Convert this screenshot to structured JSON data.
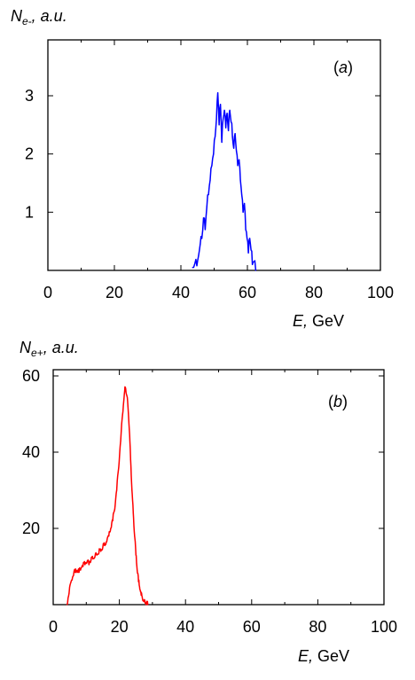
{
  "chart_data": [
    {
      "type": "line",
      "panel_label": "a",
      "ylabel_main": "N",
      "ylabel_sub": "e-",
      "ylabel_rest": ", a.u.",
      "xlabel_var": "E,",
      "xlabel_unit": " GeV",
      "xlim": [
        0,
        100
      ],
      "ylim": [
        0,
        3
      ],
      "xticks": [
        0,
        20,
        40,
        60,
        80,
        100
      ],
      "yticks": [
        1,
        2,
        3
      ],
      "color": "#0000ff",
      "series": [
        {
          "x": [
            43.5,
            44.2,
            44.8,
            45.3,
            45.8,
            46.3,
            46.8,
            47.3,
            47.8,
            48.3,
            48.8,
            49.3,
            49.8,
            50.3,
            50.7,
            51.1,
            51.5,
            51.9,
            52.3,
            52.7,
            53.1,
            53.5,
            53.9,
            54.3,
            54.7,
            55.1,
            55.5,
            55.9,
            56.3,
            56.7,
            57.1,
            57.5,
            57.9,
            58.3,
            58.7,
            59.1,
            59.5,
            59.9,
            60.3,
            60.7,
            61.1,
            61.5,
            62.0,
            62.5
          ],
          "y": [
            0.05,
            0.12,
            0.08,
            0.25,
            0.45,
            0.55,
            0.9,
            0.7,
            1.1,
            1.3,
            1.55,
            1.8,
            2.0,
            2.3,
            2.6,
            3.05,
            2.5,
            2.85,
            2.2,
            2.6,
            2.75,
            2.45,
            2.7,
            2.4,
            2.75,
            2.55,
            2.3,
            2.1,
            2.35,
            2.05,
            1.8,
            1.9,
            1.55,
            1.3,
            1.0,
            1.15,
            0.7,
            0.55,
            0.3,
            0.55,
            0.35,
            0.1,
            0.15,
            0.0
          ]
        }
      ]
    },
    {
      "type": "line",
      "panel_label": "b",
      "ylabel_main": "N",
      "ylabel_sub": "e+",
      "ylabel_rest": ", a.u.",
      "xlabel_var": "E,",
      "xlabel_unit": " GeV",
      "xlim": [
        0,
        100
      ],
      "ylim": [
        0,
        58
      ],
      "xticks": [
        0,
        20,
        40,
        60,
        80,
        100
      ],
      "yticks": [
        20,
        40,
        60
      ],
      "color": "#ff0000",
      "series": [
        {
          "x": [
            4.2,
            4.8,
            5.4,
            6.0,
            6.6,
            7.2,
            7.8,
            8.4,
            9.0,
            9.6,
            10.2,
            10.8,
            11.4,
            12.0,
            12.6,
            13.2,
            13.8,
            14.4,
            15.0,
            15.6,
            16.2,
            16.8,
            17.4,
            18.0,
            18.6,
            19.2,
            19.8,
            20.4,
            21.0,
            21.4,
            21.8,
            22.2,
            22.6,
            23.0,
            23.4,
            23.8,
            24.2,
            24.6,
            25.0,
            25.4,
            25.8,
            26.2,
            26.6,
            27.0,
            27.4,
            27.8,
            28.2,
            28.6
          ],
          "y": [
            0.0,
            3.0,
            6.0,
            7.5,
            8.5,
            9.0,
            8.5,
            9.5,
            10.0,
            10.5,
            11.0,
            10.5,
            11.5,
            12.0,
            12.5,
            13.0,
            13.5,
            14.0,
            15.0,
            15.5,
            16.5,
            18.0,
            20.0,
            22.0,
            25.0,
            30.0,
            36.0,
            43.0,
            50.0,
            54.0,
            57.0,
            55.0,
            52.0,
            46.0,
            38.0,
            30.0,
            24.0,
            18.0,
            13.0,
            9.0,
            6.0,
            4.0,
            2.5,
            1.5,
            0.8,
            0.4,
            0.1,
            0.0
          ]
        }
      ]
    }
  ]
}
